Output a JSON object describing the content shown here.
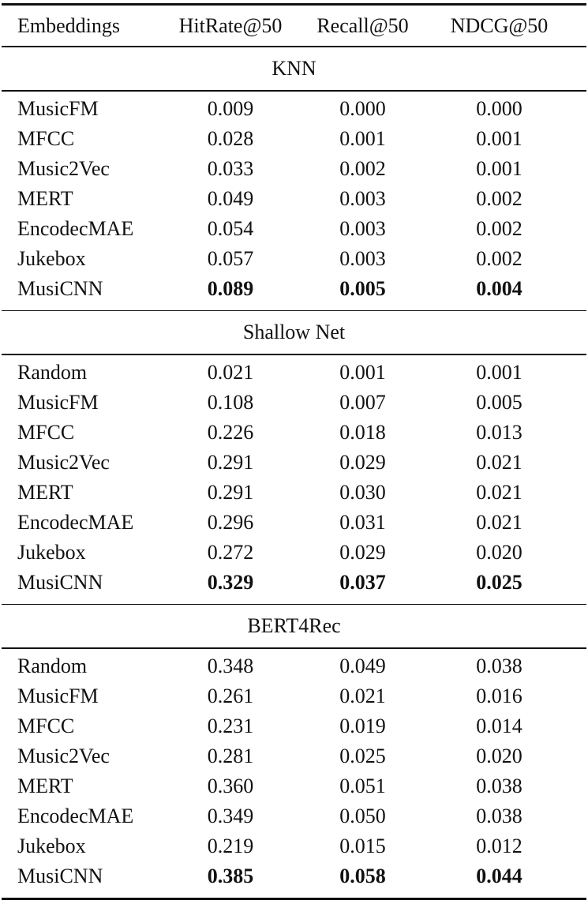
{
  "table": {
    "columns": [
      "Embeddings",
      "HitRate@50",
      "Recall@50",
      "NDCG@50"
    ],
    "sections": [
      {
        "title": "KNN",
        "rows": [
          {
            "embedding": "MusicFM",
            "values": [
              "0.009",
              "0.000",
              "0.000"
            ],
            "bold": false
          },
          {
            "embedding": "MFCC",
            "values": [
              "0.028",
              "0.001",
              "0.001"
            ],
            "bold": false
          },
          {
            "embedding": "Music2Vec",
            "values": [
              "0.033",
              "0.002",
              "0.001"
            ],
            "bold": false
          },
          {
            "embedding": "MERT",
            "values": [
              "0.049",
              "0.003",
              "0.002"
            ],
            "bold": false
          },
          {
            "embedding": "EncodecMAE",
            "values": [
              "0.054",
              "0.003",
              "0.002"
            ],
            "bold": false
          },
          {
            "embedding": "Jukebox",
            "values": [
              "0.057",
              "0.003",
              "0.002"
            ],
            "bold": false
          },
          {
            "embedding": "MusiCNN",
            "values": [
              "0.089",
              "0.005",
              "0.004"
            ],
            "bold": true
          }
        ]
      },
      {
        "title": "Shallow Net",
        "rows": [
          {
            "embedding": "Random",
            "values": [
              "0.021",
              "0.001",
              "0.001"
            ],
            "bold": false
          },
          {
            "embedding": "MusicFM",
            "values": [
              "0.108",
              "0.007",
              "0.005"
            ],
            "bold": false
          },
          {
            "embedding": "MFCC",
            "values": [
              "0.226",
              "0.018",
              "0.013"
            ],
            "bold": false
          },
          {
            "embedding": "Music2Vec",
            "values": [
              "0.291",
              "0.029",
              "0.021"
            ],
            "bold": false
          },
          {
            "embedding": "MERT",
            "values": [
              "0.291",
              "0.030",
              "0.021"
            ],
            "bold": false
          },
          {
            "embedding": "EncodecMAE",
            "values": [
              "0.296",
              "0.031",
              "0.021"
            ],
            "bold": false
          },
          {
            "embedding": "Jukebox",
            "values": [
              "0.272",
              "0.029",
              "0.020"
            ],
            "bold": false
          },
          {
            "embedding": "MusiCNN",
            "values": [
              "0.329",
              "0.037",
              "0.025"
            ],
            "bold": true
          }
        ]
      },
      {
        "title": "BERT4Rec",
        "rows": [
          {
            "embedding": "Random",
            "values": [
              "0.348",
              "0.049",
              "0.038"
            ],
            "bold": false
          },
          {
            "embedding": "MusicFM",
            "values": [
              "0.261",
              "0.021",
              "0.016"
            ],
            "bold": false
          },
          {
            "embedding": "MFCC",
            "values": [
              "0.231",
              "0.019",
              "0.014"
            ],
            "bold": false
          },
          {
            "embedding": "Music2Vec",
            "values": [
              "0.281",
              "0.025",
              "0.020"
            ],
            "bold": false
          },
          {
            "embedding": "MERT",
            "values": [
              "0.360",
              "0.051",
              "0.038"
            ],
            "bold": false
          },
          {
            "embedding": "EncodecMAE",
            "values": [
              "0.349",
              "0.050",
              "0.038"
            ],
            "bold": false
          },
          {
            "embedding": "Jukebox",
            "values": [
              "0.219",
              "0.015",
              "0.012"
            ],
            "bold": false
          },
          {
            "embedding": "MusiCNN",
            "values": [
              "0.385",
              "0.058",
              "0.044"
            ],
            "bold": true
          }
        ]
      }
    ]
  },
  "colors": {
    "text": "#111111",
    "rule": "#111111",
    "background": "#ffffff"
  }
}
